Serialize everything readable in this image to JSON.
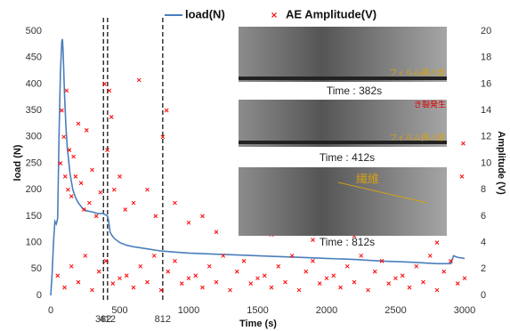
{
  "chart_data": {
    "type": "line-scatter",
    "xlabel": "Time (s)",
    "ylabel": "load (N)",
    "y2label": "Amplitude (V)",
    "xlim": [
      0,
      3000
    ],
    "xticks": [
      0,
      500,
      1000,
      1500,
      2000,
      2500,
      3000
    ],
    "ylim": [
      0,
      500
    ],
    "yticks": [
      0,
      50,
      100,
      150,
      200,
      250,
      300,
      350,
      400,
      450,
      500
    ],
    "y2lim": [
      0,
      20
    ],
    "y2ticks": [
      0,
      2,
      4,
      6,
      8,
      10,
      12,
      14,
      16,
      18,
      20
    ],
    "vlines": [
      382,
      412,
      812
    ],
    "series": [
      {
        "name": "load(N)",
        "kind": "line",
        "color": "#4a7ebb",
        "x": [
          0,
          10,
          20,
          30,
          40,
          50,
          60,
          70,
          80,
          85,
          90,
          100,
          110,
          120,
          140,
          160,
          180,
          200,
          230,
          260,
          300,
          340,
          380,
          400,
          412,
          420,
          430,
          440,
          460,
          500,
          550,
          600,
          700,
          800,
          900,
          1000,
          1200,
          1400,
          1600,
          1800,
          2000,
          2200,
          2400,
          2600,
          2800,
          2900,
          2920,
          2950,
          3000
        ],
        "values": [
          0,
          40,
          100,
          140,
          135,
          145,
          300,
          420,
          480,
          485,
          460,
          380,
          320,
          280,
          230,
          200,
          185,
          175,
          165,
          160,
          158,
          155,
          155,
          152,
          150,
          140,
          120,
          115,
          108,
          100,
          95,
          92,
          88,
          84,
          82,
          80,
          78,
          76,
          74,
          72,
          70,
          68,
          65,
          63,
          60,
          60,
          75,
          72,
          70
        ]
      },
      {
        "name": "AE Amplitude(V)",
        "kind": "scatter",
        "axis": "y2",
        "color": "#ff0000",
        "x": [
          70,
          80,
          95,
          105,
          115,
          125,
          135,
          150,
          165,
          180,
          200,
          220,
          240,
          260,
          280,
          300,
          330,
          360,
          390,
          410,
          425,
          440,
          460,
          500,
          540,
          600,
          640,
          700,
          760,
          812,
          840,
          900,
          1000,
          1100,
          1200,
          1400,
          1600,
          1900,
          2200,
          2500,
          2800,
          2980,
          2990,
          50,
          100,
          150,
          200,
          250,
          300,
          350,
          400,
          450,
          500,
          550,
          600,
          650,
          700,
          750,
          800,
          850,
          900,
          950,
          1000,
          1050,
          1100,
          1150,
          1200,
          1250,
          1300,
          1350,
          1400,
          1450,
          1500,
          1550,
          1600,
          1650,
          1700,
          1750,
          1800,
          1850,
          1900,
          1950,
          2000,
          2050,
          2100,
          2150,
          2200,
          2250,
          2300,
          2350,
          2400,
          2450,
          2500,
          2550,
          2600,
          2650,
          2700,
          2750,
          2800,
          2850,
          2900,
          2950,
          3000
        ],
        "values": [
          10,
          14,
          12,
          9,
          15.5,
          8,
          11,
          7.5,
          10.5,
          9,
          13,
          8.5,
          6.5,
          12.5,
          7,
          9.5,
          6,
          7.8,
          16,
          11,
          15.5,
          13.5,
          8,
          9,
          6.5,
          7,
          16.3,
          8,
          6,
          12,
          14,
          7,
          5.5,
          6,
          4.8,
          5,
          4.6,
          4.2,
          4.5,
          4.8,
          4,
          9,
          11.5,
          1.5,
          0.6,
          2.2,
          1,
          3,
          0.4,
          1.8,
          2.6,
          0.9,
          1.3,
          1.5,
          0.6,
          2.2,
          1,
          3,
          0.4,
          1.8,
          2.6,
          0.9,
          1.3,
          1.5,
          0.6,
          2.2,
          1,
          3,
          0.4,
          1.8,
          2.6,
          0.9,
          1.3,
          1.5,
          0.6,
          2.2,
          1,
          3,
          0.4,
          1.8,
          2.6,
          0.9,
          1.3,
          1.5,
          0.6,
          2.2,
          1,
          3,
          0.4,
          1.8,
          2.6,
          0.9,
          1.3,
          1.5,
          0.6,
          2.2,
          1,
          3,
          0.4,
          1.8,
          2.6,
          0.9,
          1.3
        ]
      }
    ]
  },
  "insets": [
    {
      "caption": "Time : 382s",
      "labels": [
        "フィルム挿入部"
      ]
    },
    {
      "caption": "Time : 412s",
      "labels": [
        "き裂発生",
        "フィルム挿入部"
      ]
    },
    {
      "caption": "Time : 812s",
      "labels": [
        "繊維"
      ]
    }
  ]
}
